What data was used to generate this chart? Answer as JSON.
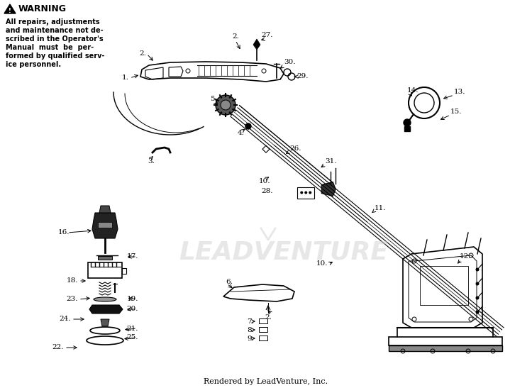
{
  "title": "Rendered by LeadVenture, Inc.",
  "background_color": "#ffffff",
  "watermark_text": "LEADVENTURE",
  "warning_title": "WARNING",
  "warning_text": "All repairs, adjustments\nand maintenance not de-\nscribed in the Operator's\nManual must be per-\nformed by qualified serv-\nice personnel.",
  "fig_width": 7.5,
  "fig_height": 5.47,
  "dpi": 100
}
